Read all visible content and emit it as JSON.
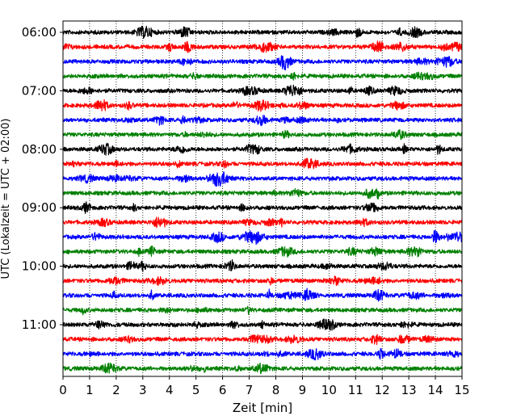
{
  "chart_data": {
    "type": "line",
    "title": "",
    "xlabel": "Zeit  [min]",
    "ylabel": "UTC (Lokalzeit = UTC + 02:00)",
    "xlim": [
      0,
      15
    ],
    "x_ticks": [
      "0",
      "1",
      "2",
      "3",
      "4",
      "5",
      "6",
      "7",
      "8",
      "9",
      "10",
      "11",
      "12",
      "13",
      "14",
      "15"
    ],
    "y_ticks": [
      "06:00",
      "07:00",
      "08:00",
      "09:00",
      "10:00",
      "11:00"
    ],
    "grid": "vertical-dotted",
    "trace_minutes": 15,
    "trace_colors": [
      "#000000",
      "#ff0000",
      "#0000ff",
      "#008000"
    ],
    "traces": [
      {
        "start": "06:00",
        "color": "#000000"
      },
      {
        "start": "06:15",
        "color": "#ff0000"
      },
      {
        "start": "06:30",
        "color": "#0000ff"
      },
      {
        "start": "06:45",
        "color": "#008000"
      },
      {
        "start": "07:00",
        "color": "#000000"
      },
      {
        "start": "07:15",
        "color": "#ff0000"
      },
      {
        "start": "07:30",
        "color": "#0000ff"
      },
      {
        "start": "07:45",
        "color": "#008000"
      },
      {
        "start": "08:00",
        "color": "#000000"
      },
      {
        "start": "08:15",
        "color": "#ff0000"
      },
      {
        "start": "08:30",
        "color": "#0000ff"
      },
      {
        "start": "08:45",
        "color": "#008000"
      },
      {
        "start": "09:00",
        "color": "#000000"
      },
      {
        "start": "09:15",
        "color": "#ff0000"
      },
      {
        "start": "09:30",
        "color": "#0000ff"
      },
      {
        "start": "09:45",
        "color": "#008000"
      },
      {
        "start": "10:00",
        "color": "#000000"
      },
      {
        "start": "10:15",
        "color": "#ff0000"
      },
      {
        "start": "10:30",
        "color": "#0000ff"
      },
      {
        "start": "10:45",
        "color": "#008000"
      },
      {
        "start": "11:00",
        "color": "#000000"
      },
      {
        "start": "11:15",
        "color": "#ff0000"
      },
      {
        "start": "11:30",
        "color": "#0000ff"
      },
      {
        "start": "11:45",
        "color": "#008000"
      }
    ]
  }
}
